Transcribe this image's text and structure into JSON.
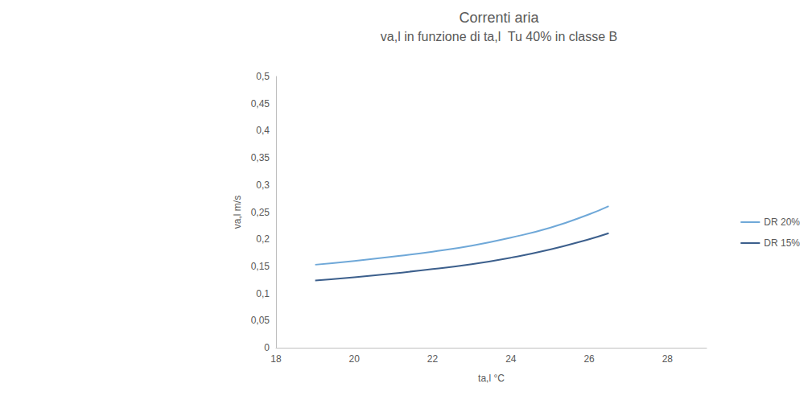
{
  "chart_data": {
    "type": "line",
    "title": "Correnti aria",
    "subtitle": "va,l in funzione di ta,l  Tu 40% in classe B",
    "x_label": "ta,l °C",
    "y_label": "va,l m/s",
    "xlim": [
      18,
      29
    ],
    "xticks": [
      18,
      20,
      22,
      24,
      26,
      28
    ],
    "ylim": [
      0,
      0.5
    ],
    "yticks": [
      0,
      {
        "value": 0.05,
        "label": "0,05"
      },
      {
        "value": 0.1,
        "label": "0,1"
      },
      {
        "value": 0.15,
        "label": "0,15"
      },
      {
        "value": 0.2,
        "label": "0,2"
      },
      {
        "value": 0.25,
        "label": "0,25"
      },
      {
        "value": 0.3,
        "label": "0,3"
      },
      {
        "value": 0.35,
        "label": "0,35"
      },
      {
        "value": 0.4,
        "label": "0,4"
      },
      {
        "value": 0.45,
        "label": "0,45"
      },
      {
        "value": 0.5,
        "label": "0,5"
      }
    ],
    "grid": false,
    "legend": "right",
    "series": [
      {
        "name": "DR 20%",
        "color": "#6fa8d8",
        "line_style": "smooth",
        "x": [
          19,
          20,
          21,
          22,
          23,
          24,
          25,
          26,
          26.5
        ],
        "values": [
          0.153,
          0.16,
          0.168,
          0.177,
          0.188,
          0.203,
          0.221,
          0.246,
          0.261
        ]
      },
      {
        "name": "DR 15%",
        "color": "#3c5f8c",
        "line_style": "smooth",
        "x": [
          19,
          20,
          21,
          22,
          23,
          24,
          25,
          26,
          26.5
        ],
        "values": [
          0.124,
          0.13,
          0.137,
          0.145,
          0.154,
          0.166,
          0.181,
          0.2,
          0.211
        ]
      }
    ]
  }
}
